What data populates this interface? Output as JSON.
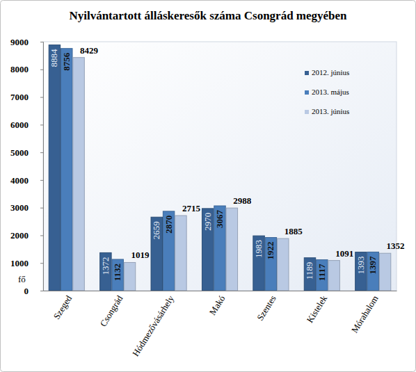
{
  "chart_data": {
    "type": "bar",
    "title": "Nyilvántartott álláskeresők száma Csongrád megyében",
    "y_label": "fő",
    "categories": [
      "Szeged",
      "Csongrád",
      "Hódmezővásárhely",
      "Makó",
      "Szentes",
      "Kistelek",
      "Mórahalom"
    ],
    "series": [
      {
        "name": "2012. június",
        "color": "#376092",
        "values": [
          8884,
          1372,
          2659,
          2970,
          1983,
          1189,
          1393
        ]
      },
      {
        "name": "2013. május",
        "color": "#4a7ebb",
        "values": [
          8756,
          1132,
          2870,
          3067,
          1922,
          1117,
          1397
        ]
      },
      {
        "name": "2013. június",
        "color": "#b9c9e3",
        "values": [
          8429,
          1019,
          2715,
          2988,
          1885,
          1091,
          1352
        ]
      }
    ],
    "ylim": [
      0,
      9000
    ],
    "yticks": [
      0,
      1000,
      2000,
      3000,
      4000,
      5000,
      6000,
      7000,
      8000,
      9000
    ],
    "grid": false,
    "legend": "top-right",
    "data_labels": true
  }
}
